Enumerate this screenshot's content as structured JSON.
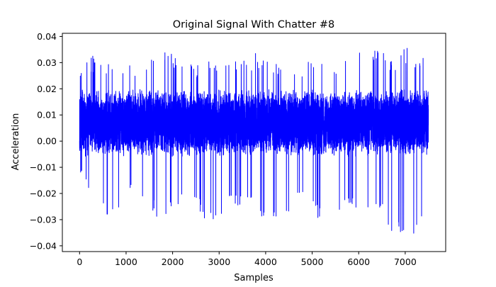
{
  "chart_data": {
    "type": "line",
    "title": "Original Signal With Chatter #8",
    "xlabel": "Samples",
    "ylabel": "Acceleration",
    "xlim": [
      -370,
      7870
    ],
    "ylim": [
      -0.0422,
      0.0412
    ],
    "xticks": [
      0,
      1000,
      2000,
      3000,
      4000,
      5000,
      6000,
      7000
    ],
    "xtick_labels": [
      "0",
      "1000",
      "2000",
      "3000",
      "4000",
      "5000",
      "6000",
      "7000"
    ],
    "yticks": [
      -0.04,
      -0.03,
      -0.02,
      -0.01,
      0.0,
      0.01,
      0.02,
      0.03,
      0.04
    ],
    "ytick_labels": [
      "−0.04",
      "−0.03",
      "−0.02",
      "−0.01",
      "0.00",
      "0.01",
      "0.02",
      "0.03",
      "0.04"
    ],
    "grid": false,
    "series": [
      {
        "color": "#0000ff",
        "n_samples": 7500,
        "x_start": 0,
        "x_end": 7499,
        "envelope": {
          "x": [
            0,
            250,
            500,
            750,
            1000,
            1250,
            1500,
            1750,
            2000,
            2250,
            2500,
            2750,
            3000,
            3250,
            3500,
            3750,
            4000,
            4250,
            4500,
            4750,
            5000,
            5250,
            5500,
            5750,
            6000,
            6250,
            6500,
            6750,
            7000,
            7250,
            7499
          ],
          "max": [
            0.026,
            0.033,
            0.031,
            0.03,
            0.029,
            0.029,
            0.031,
            0.035,
            0.034,
            0.032,
            0.03,
            0.031,
            0.03,
            0.031,
            0.031,
            0.034,
            0.031,
            0.03,
            0.031,
            0.03,
            0.031,
            0.034,
            0.032,
            0.031,
            0.034,
            0.036,
            0.035,
            0.033,
            0.036,
            0.034,
            0.033
          ],
          "min": [
            -0.011,
            -0.022,
            -0.025,
            -0.033,
            -0.019,
            -0.022,
            -0.024,
            -0.034,
            -0.027,
            -0.022,
            -0.023,
            -0.035,
            -0.03,
            -0.025,
            -0.026,
            -0.022,
            -0.033,
            -0.031,
            -0.028,
            -0.023,
            -0.027,
            -0.033,
            -0.028,
            -0.025,
            -0.027,
            -0.029,
            -0.026,
            -0.038,
            -0.038,
            -0.037,
            -0.024
          ],
          "typical_high": 0.02,
          "typical_low": -0.006
        }
      }
    ]
  }
}
